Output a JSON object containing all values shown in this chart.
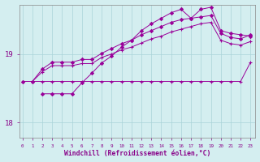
{
  "xlabel": "Windchill (Refroidissement éolien,°C)",
  "bg_color": "#d4eef0",
  "line_color": "#990099",
  "grid_color": "#aad4d8",
  "axis_color": "#880088",
  "x_ticks": [
    0,
    1,
    2,
    3,
    4,
    5,
    6,
    7,
    8,
    9,
    10,
    11,
    12,
    13,
    14,
    15,
    16,
    17,
    18,
    19,
    20,
    21,
    22,
    23
  ],
  "ylim": [
    17.78,
    19.72
  ],
  "xlim": [
    -0.3,
    23.5
  ],
  "yticks": [
    18,
    19
  ],
  "line1_x": [
    0,
    1,
    2,
    3,
    4,
    5,
    6,
    7,
    8,
    9,
    10,
    11,
    12,
    13,
    14,
    15,
    16,
    17,
    18,
    19,
    20,
    21,
    22,
    23
  ],
  "line1_y": [
    18.6,
    18.6,
    18.6,
    18.6,
    18.6,
    18.6,
    18.6,
    18.6,
    18.6,
    18.6,
    18.6,
    18.6,
    18.6,
    18.6,
    18.6,
    18.6,
    18.6,
    18.6,
    18.6,
    18.6,
    18.6,
    18.6,
    18.6,
    18.88
  ],
  "line2_x": [
    0,
    1,
    2,
    3,
    4,
    5,
    6,
    7,
    8,
    9,
    10,
    11,
    12,
    13,
    14,
    15,
    16,
    17,
    18,
    19,
    20,
    21,
    22,
    23
  ],
  "line2_y": [
    18.6,
    18.6,
    18.74,
    18.83,
    18.83,
    18.83,
    18.86,
    18.86,
    18.95,
    19.0,
    19.06,
    19.1,
    19.16,
    19.22,
    19.26,
    19.32,
    19.36,
    19.4,
    19.44,
    19.46,
    19.2,
    19.15,
    19.13,
    19.18
  ],
  "line3_x": [
    0,
    1,
    2,
    3,
    4,
    5,
    6,
    7,
    8,
    9,
    10,
    11,
    12,
    13,
    14,
    15,
    16,
    17,
    18,
    19,
    20,
    21,
    22,
    23
  ],
  "line3_y": [
    18.6,
    18.6,
    18.78,
    18.88,
    18.88,
    18.88,
    18.92,
    18.92,
    19.01,
    19.08,
    19.15,
    19.2,
    19.28,
    19.34,
    19.4,
    19.46,
    19.5,
    19.52,
    19.54,
    19.56,
    19.3,
    19.24,
    19.22,
    19.28
  ],
  "line4_x": [
    2,
    3,
    4,
    5,
    6,
    7,
    8,
    9,
    10,
    11,
    12,
    13,
    14,
    15,
    16,
    17,
    18,
    19,
    20,
    21,
    22,
    23
  ],
  "line4_y": [
    18.42,
    18.42,
    18.42,
    18.42,
    18.58,
    18.72,
    18.87,
    18.97,
    19.1,
    19.2,
    19.34,
    19.44,
    19.52,
    19.6,
    19.65,
    19.52,
    19.65,
    19.68,
    19.34,
    19.3,
    19.28,
    19.26
  ]
}
